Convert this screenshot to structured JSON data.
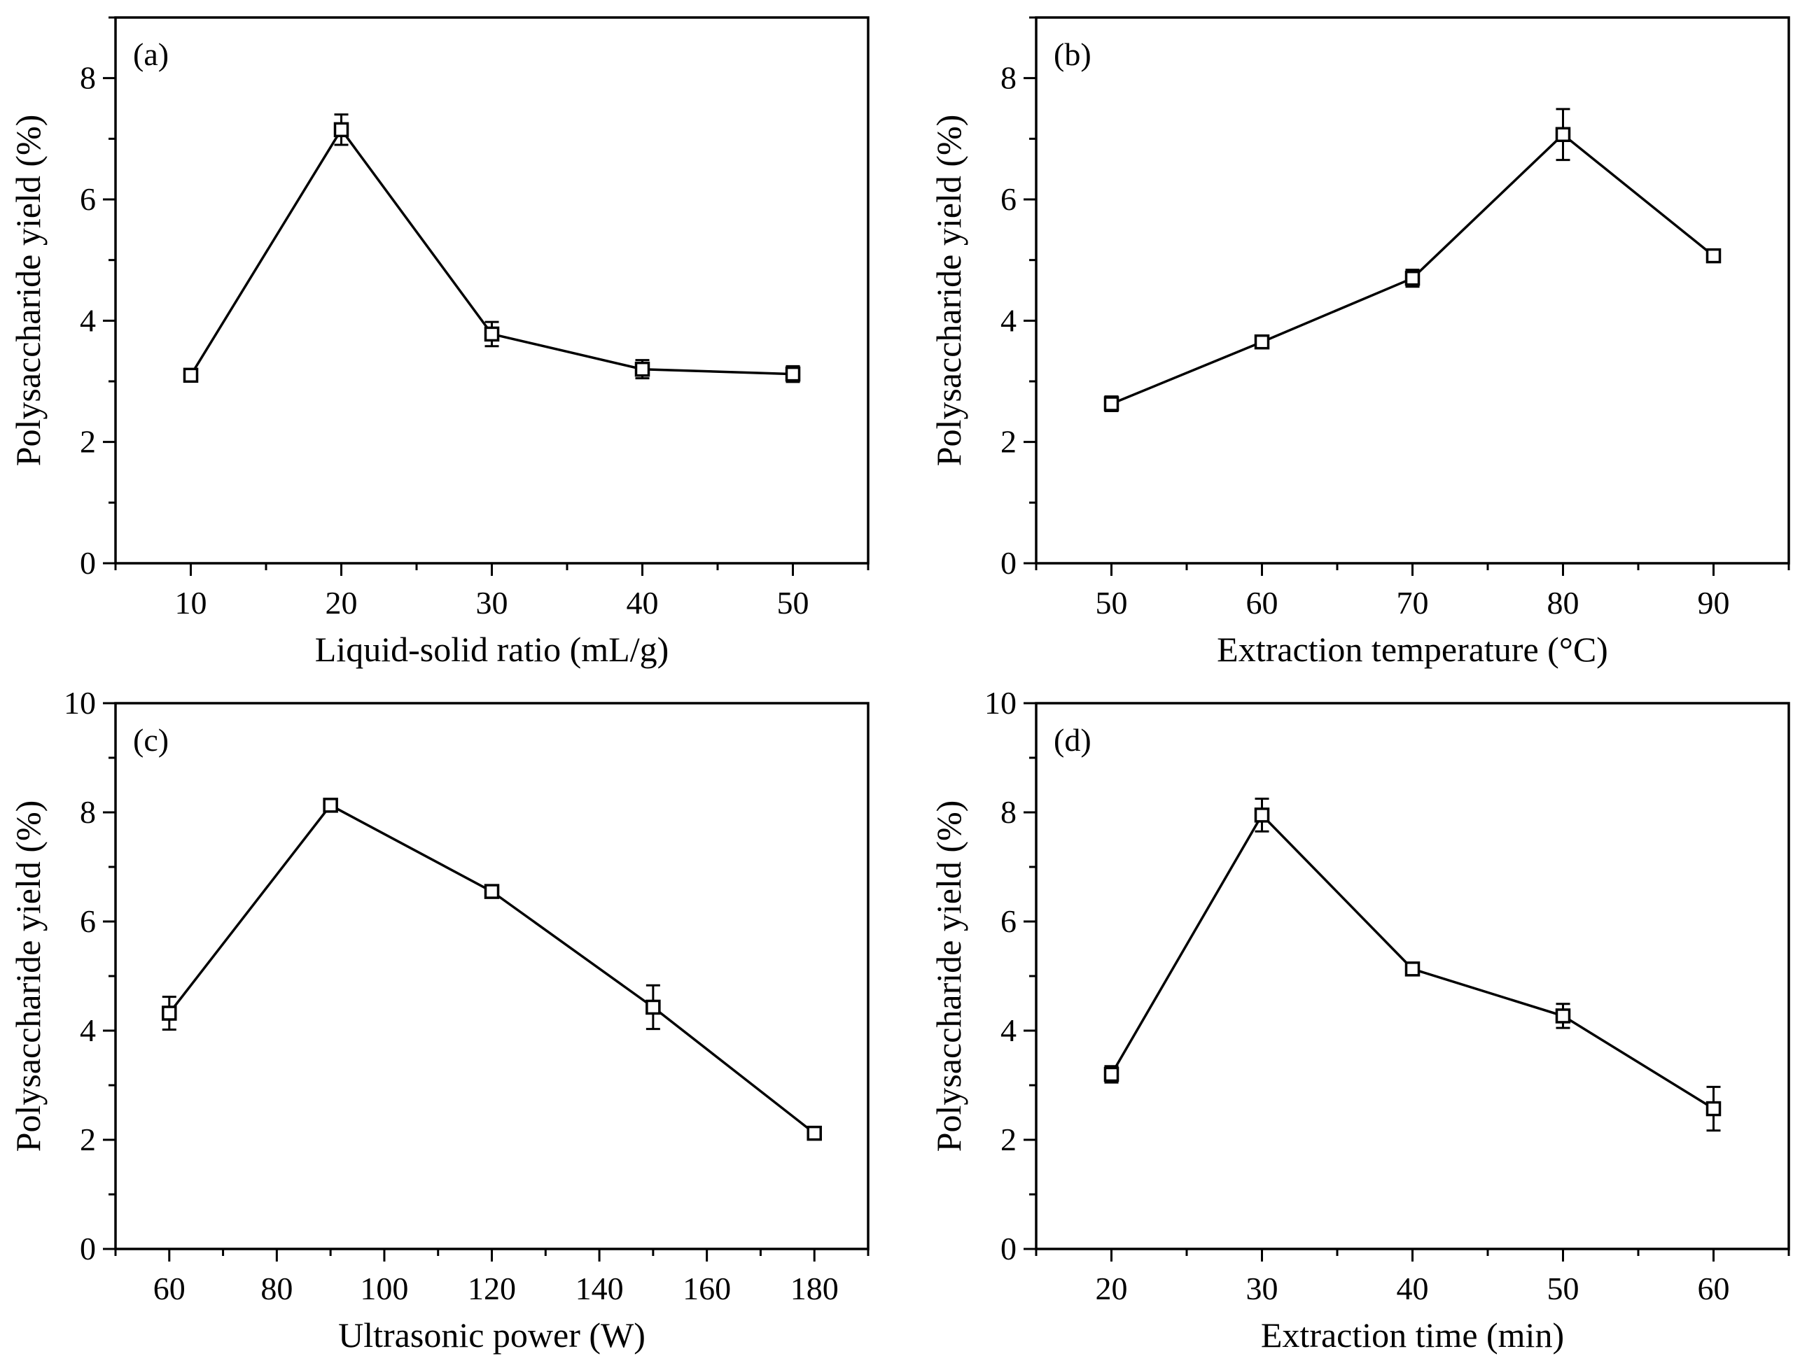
{
  "chart_data": [
    {
      "type": "line",
      "panel_label": "(a)",
      "xlabel": "Liquid-solid ratio (mL/g)",
      "ylabel": "Polysaccharide yield (%)",
      "xlim": [
        5,
        55
      ],
      "ylim": [
        0,
        9
      ],
      "xticks": [
        10,
        20,
        30,
        40,
        50
      ],
      "yticks": [
        0,
        2,
        4,
        6,
        8
      ],
      "series": [
        {
          "name": "yield",
          "x": [
            10,
            20,
            30,
            40,
            50
          ],
          "y": [
            3.1,
            7.15,
            3.78,
            3.2,
            3.12
          ],
          "err": [
            0.06,
            0.25,
            0.2,
            0.15,
            0.13
          ]
        }
      ]
    },
    {
      "type": "line",
      "panel_label": "(b)",
      "xlabel": "Extraction temperature (°C)",
      "ylabel": "Polysaccharide yield (%)",
      "xlim": [
        45,
        95
      ],
      "ylim": [
        0,
        9
      ],
      "xticks": [
        50,
        60,
        70,
        80,
        90
      ],
      "yticks": [
        0,
        2,
        4,
        6,
        8
      ],
      "series": [
        {
          "name": "yield",
          "x": [
            50,
            60,
            70,
            80,
            90
          ],
          "y": [
            2.63,
            3.65,
            4.7,
            7.07,
            5.07
          ],
          "err": [
            0.12,
            0.05,
            0.14,
            0.42,
            0.06
          ]
        }
      ]
    },
    {
      "type": "line",
      "panel_label": "(c)",
      "xlabel": "Ultrasonic power (W)",
      "ylabel": "Polysaccharide yield (%)",
      "xlim": [
        50,
        190
      ],
      "ylim": [
        0,
        10
      ],
      "xticks": [
        60,
        80,
        100,
        120,
        140,
        160,
        180
      ],
      "yticks": [
        0,
        2,
        4,
        6,
        8,
        10
      ],
      "series": [
        {
          "name": "yield",
          "x": [
            60,
            90,
            120,
            150,
            180
          ],
          "y": [
            4.32,
            8.13,
            6.55,
            4.43,
            2.12
          ],
          "err": [
            0.3,
            0.06,
            0.06,
            0.4,
            0.06
          ]
        }
      ]
    },
    {
      "type": "line",
      "panel_label": "(d)",
      "xlabel": "Extraction time (min)",
      "ylabel": "Polysaccharide yield (%)",
      "xlim": [
        15,
        65
      ],
      "ylim": [
        0,
        10
      ],
      "xticks": [
        20,
        30,
        40,
        50,
        60
      ],
      "yticks": [
        0,
        2,
        4,
        6,
        8,
        10
      ],
      "series": [
        {
          "name": "yield",
          "x": [
            20,
            30,
            40,
            50,
            60
          ],
          "y": [
            3.2,
            7.95,
            5.13,
            4.27,
            2.57
          ],
          "err": [
            0.15,
            0.3,
            0.06,
            0.22,
            0.4
          ]
        }
      ]
    }
  ]
}
